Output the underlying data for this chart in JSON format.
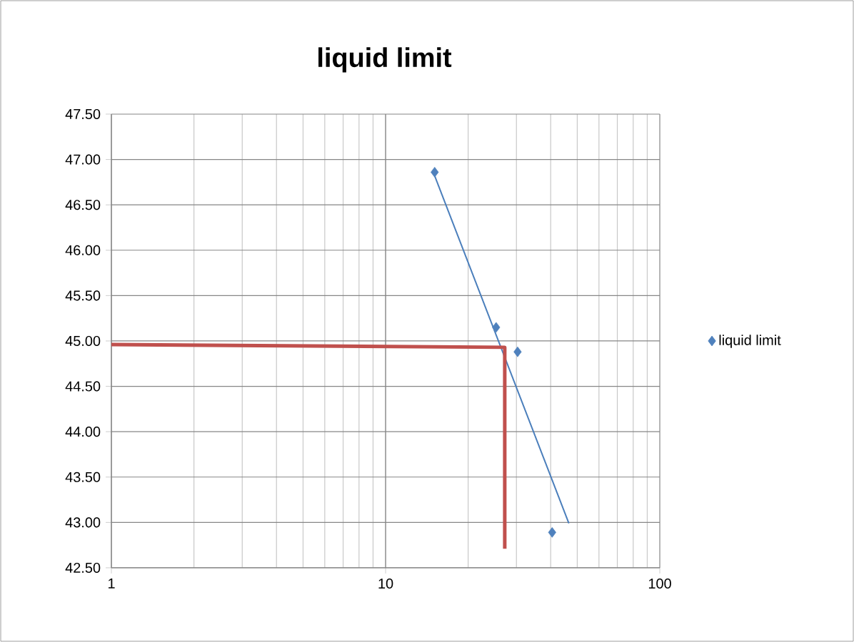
{
  "chart_data": {
    "type": "scatter",
    "title": "liquid limit",
    "log": "x",
    "grid": true,
    "legend": "right",
    "marker": "diamond",
    "xlim": [
      1,
      100
    ],
    "xticks": [
      1,
      10,
      100
    ],
    "ylim": [
      42.5,
      47.5
    ],
    "yticks": [
      {
        "value": 42.5,
        "label": "42.50"
      },
      {
        "value": 43,
        "label": "43.00"
      },
      {
        "value": 43.5,
        "label": "43.50"
      },
      {
        "value": 44,
        "label": "44.00"
      },
      {
        "value": 44.5,
        "label": "44.50"
      },
      {
        "value": 45,
        "label": "45.00"
      },
      {
        "value": 45.5,
        "label": "45.50"
      },
      {
        "value": 46,
        "label": "46.00"
      },
      {
        "value": 46.5,
        "label": "46.50"
      },
      {
        "value": 47,
        "label": "47.00"
      },
      {
        "value": 47.5,
        "label": "47.50"
      }
    ],
    "series": [
      {
        "name": "liquid limit",
        "color": "#4f81bd",
        "x": [
          15.1,
          25.3,
          30.3,
          40.5
        ],
        "values": [
          46.86,
          45.15,
          44.88,
          42.89
        ]
      },
      {
        "type": "line",
        "marker": "none",
        "color": "#4a7ebb",
        "x": [
          15.1,
          46.6
        ],
        "values": [
          46.82,
          42.99
        ]
      },
      {
        "type": "line",
        "marker": "none",
        "color": "#c0504d",
        "x": [
          1,
          27.2,
          27.2
        ],
        "values": [
          44.96,
          44.93,
          42.71
        ]
      }
    ]
  }
}
